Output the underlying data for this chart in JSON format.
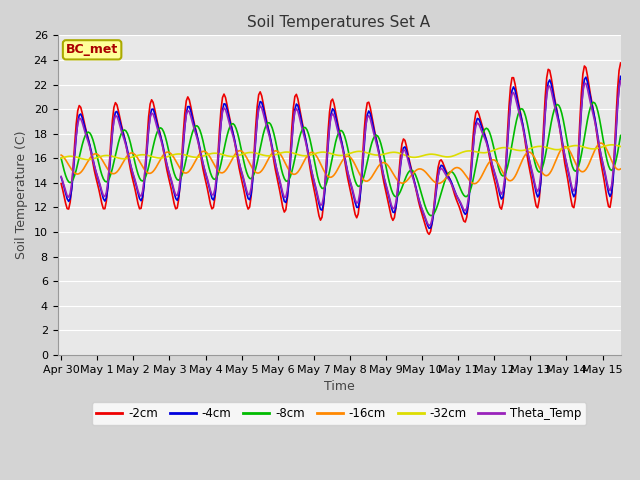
{
  "title": "Soil Temperatures Set A",
  "xlabel": "Time",
  "ylabel": "Soil Temperature (C)",
  "ylim": [
    0,
    26
  ],
  "xlim": [
    -0.1,
    15.5
  ],
  "xtick_labels": [
    "Apr 30",
    "May 1",
    "May 2",
    "May 3",
    "May 4",
    "May 5",
    "May 6",
    "May 7",
    "May 8",
    "May 9",
    "May 10",
    "May 11",
    "May 12",
    "May 13",
    "May 14",
    "May 15"
  ],
  "xtick_positions": [
    0,
    1,
    2,
    3,
    4,
    5,
    6,
    7,
    8,
    9,
    10,
    11,
    12,
    13,
    14,
    15
  ],
  "series_colors": [
    "#ee0000",
    "#0000dd",
    "#00bb00",
    "#ff8800",
    "#dddd00",
    "#9922bb"
  ],
  "series_labels": [
    "-2cm",
    "-4cm",
    "-8cm",
    "-16cm",
    "-32cm",
    "Theta_Temp"
  ],
  "bc_met_label": "BC_met",
  "bc_met_color": "#aa0000",
  "bc_met_bg": "#ffff99",
  "bc_met_edge": "#aaaa00",
  "bg_color": "#e0e0e0",
  "plot_bg": "#e8e8e8",
  "grid_color": "#ffffff",
  "figsize": [
    6.4,
    4.8
  ],
  "dpi": 100
}
